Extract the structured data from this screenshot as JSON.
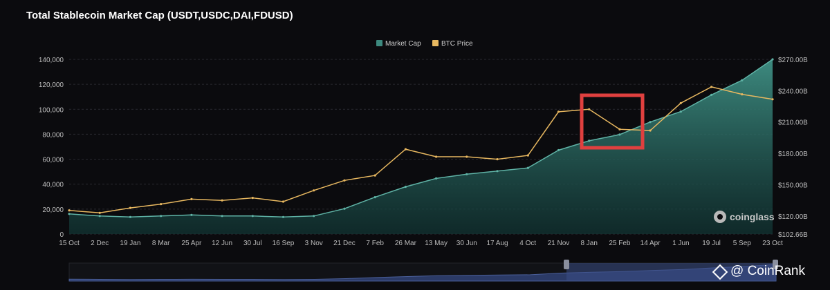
{
  "title": "Total Stablecoin Market Cap (USDT,USDC,DAI,FDUSD)",
  "watermark": "coinglass",
  "brand": "@ CoinRank",
  "colors": {
    "market_cap": "#3d8a7f",
    "btc_price": "#e8b860",
    "highlight": "#e0403f",
    "navigator": "#2b3a66"
  },
  "chart_data": {
    "type": "area",
    "title": "Total Stablecoin Market Cap (USDT,USDC,DAI,FDUSD)",
    "legend": {
      "position": "top-center",
      "entries": [
        "Market Cap",
        "BTC Price"
      ]
    },
    "x_ticks": [
      "15 Oct",
      "2 Dec",
      "19 Jan",
      "8 Mar",
      "25 Apr",
      "12 Jun",
      "30 Jul",
      "16 Sep",
      "3 Nov",
      "21 Dec",
      "7 Feb",
      "26 Mar",
      "13 May",
      "30 Jun",
      "17 Aug",
      "4 Oct",
      "21 Nov",
      "8 Jan",
      "25 Feb",
      "14 Apr",
      "1 Jun",
      "19 Jul",
      "5 Sep",
      "23 Oct"
    ],
    "y_left": {
      "ticks": [
        "0",
        "20,000",
        "40,000",
        "60,000",
        "80,000",
        "100,000",
        "120,000",
        "140,000"
      ],
      "range": [
        0,
        140000
      ]
    },
    "y_right": {
      "ticks": [
        "$102.66B",
        "$120.00B",
        "$150.00B",
        "$180.00B",
        "$210.00B",
        "$240.00B",
        "$270.00B"
      ],
      "range": [
        102.66,
        270
      ]
    },
    "grid": true,
    "series": [
      {
        "name": "Market Cap",
        "axis": "right",
        "x": [
          "15 Oct",
          "2 Dec",
          "19 Jan",
          "8 Mar",
          "25 Apr",
          "12 Jun",
          "30 Jul",
          "16 Sep",
          "3 Nov",
          "21 Dec",
          "7 Feb",
          "26 Mar",
          "13 May",
          "30 Jun",
          "17 Aug",
          "4 Oct",
          "21 Nov",
          "8 Jan",
          "25 Feb",
          "14 Apr",
          "1 Jun",
          "19 Jul",
          "5 Sep",
          "23 Oct"
        ],
        "values": [
          122,
          120,
          119,
          120,
          121,
          120,
          120,
          119,
          120,
          127,
          138,
          148,
          156,
          160,
          163,
          166,
          183,
          192,
          198,
          210,
          220,
          236,
          250,
          270
        ]
      },
      {
        "name": "BTC Price",
        "axis": "left",
        "x": [
          "15 Oct",
          "2 Dec",
          "19 Jan",
          "8 Mar",
          "25 Apr",
          "12 Jun",
          "30 Jul",
          "16 Sep",
          "3 Nov",
          "21 Dec",
          "7 Feb",
          "26 Mar",
          "13 May",
          "30 Jun",
          "17 Aug",
          "4 Oct",
          "21 Nov",
          "8 Jan",
          "25 Feb",
          "14 Apr",
          "1 Jun",
          "19 Jul",
          "5 Sep",
          "23 Oct"
        ],
        "values": [
          19000,
          17000,
          21000,
          24000,
          28000,
          27000,
          29000,
          26000,
          35000,
          43000,
          47000,
          68000,
          62000,
          62000,
          60000,
          63000,
          98000,
          100000,
          84000,
          83000,
          105000,
          118000,
          112000,
          108000
        ]
      }
    ]
  }
}
